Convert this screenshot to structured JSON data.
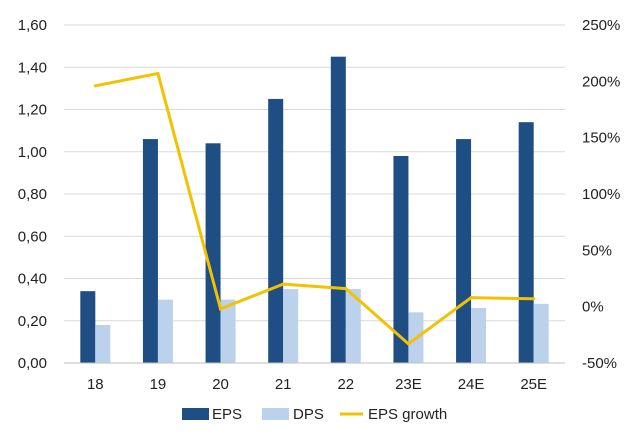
{
  "chart_data": {
    "type": "bar",
    "categories": [
      "18",
      "19",
      "20",
      "21",
      "22",
      "23E",
      "24E",
      "25E"
    ],
    "series": [
      {
        "name": "EPS",
        "kind": "bar",
        "axis": "left",
        "color": "#1f4e84",
        "values": [
          0.34,
          1.06,
          1.04,
          1.25,
          1.45,
          0.98,
          1.06,
          1.14
        ]
      },
      {
        "name": "DPS",
        "kind": "bar",
        "axis": "left",
        "color": "#bcd1ec",
        "values": [
          0.18,
          0.3,
          0.3,
          0.35,
          0.35,
          0.24,
          0.26,
          0.28
        ]
      },
      {
        "name": "EPS growth",
        "kind": "line",
        "axis": "right",
        "color": "#f2c100",
        "values": [
          196,
          207,
          -2,
          20,
          16,
          -33,
          8,
          7
        ]
      }
    ],
    "y_left": {
      "ylim": [
        0,
        1.6
      ],
      "ticks": [
        0,
        0.2,
        0.4,
        0.6,
        0.8,
        1.0,
        1.2,
        1.4,
        1.6
      ],
      "tick_labels": [
        "0,00",
        "0,20",
        "0,40",
        "0,60",
        "0,80",
        "1,00",
        "1,20",
        "1,40",
        "1,60"
      ]
    },
    "y_right": {
      "ylim": [
        -50,
        250
      ],
      "ticks": [
        -50,
        0,
        50,
        100,
        150,
        200,
        250
      ],
      "tick_labels": [
        "-50%",
        "0%",
        "50%",
        "100%",
        "150%",
        "200%",
        "250%"
      ]
    },
    "grid": true,
    "legend": "bottom",
    "title": "",
    "xlabel": "",
    "ylabel": ""
  }
}
